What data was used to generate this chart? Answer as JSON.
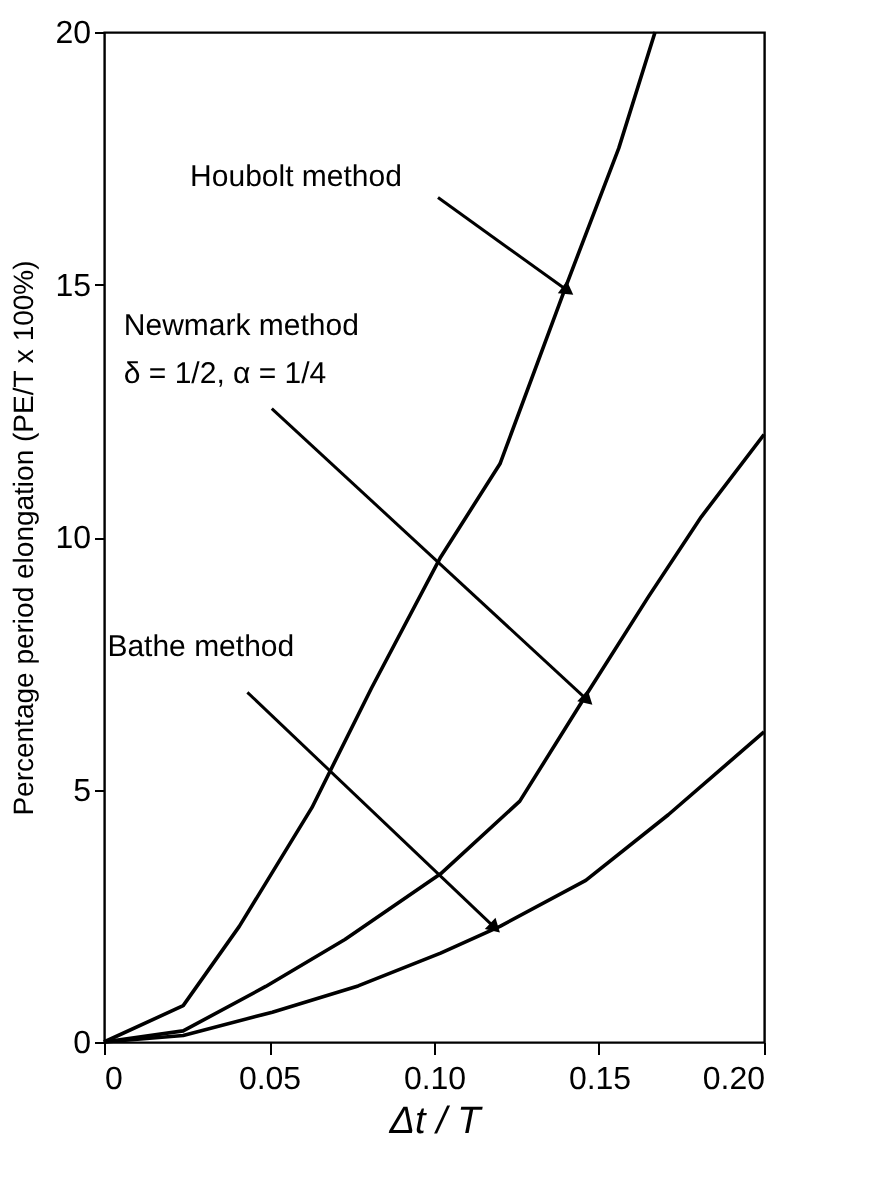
{
  "chart_data": {
    "type": "line",
    "xlabel": "Δt / T",
    "ylabel": "Percentage period elongation (PE/T x 100%)",
    "xlim": [
      0,
      0.2
    ],
    "ylim": [
      0,
      20
    ],
    "xticks": [
      {
        "value": 0,
        "label": "0"
      },
      {
        "value": 0.05,
        "label": "0.05"
      },
      {
        "value": 0.1,
        "label": "0.10"
      },
      {
        "value": 0.15,
        "label": "0.15"
      },
      {
        "value": 0.2,
        "label": "0.20"
      }
    ],
    "yticks": [
      0,
      5,
      10,
      15,
      20
    ],
    "grid": false,
    "marker": "none",
    "line_style": "solid",
    "series": [
      {
        "color": "#000000",
        "x": [
          0,
          0.024,
          0.041,
          0.063,
          0.081,
          0.102,
          0.12,
          0.14,
          0.156,
          0.167
        ],
        "values": [
          0,
          0.72,
          2.29,
          4.64,
          7.0,
          9.6,
          11.45,
          14.97,
          17.7,
          20
        ]
      },
      {
        "color": "#000000",
        "x": [
          0,
          0.024,
          0.049,
          0.073,
          0.102,
          0.126,
          0.146,
          0.165,
          0.181,
          0.2
        ],
        "values": [
          0,
          0.22,
          1.1,
          2.03,
          3.33,
          4.77,
          6.86,
          8.82,
          10.4,
          12.03
        ]
      },
      {
        "color": "#000000",
        "x": [
          0,
          0.024,
          0.051,
          0.077,
          0.102,
          0.12,
          0.146,
          0.171,
          0.2
        ],
        "values": [
          0,
          0.13,
          0.59,
          1.11,
          1.76,
          2.29,
          3.2,
          4.5,
          6.14
        ]
      }
    ],
    "annotations": [
      {
        "text": "Houbolt method",
        "x": 0.14,
        "y": 14.9
      },
      {
        "text": "Newmark method\nδ = 1/2, α = 1/4",
        "x": 0.146,
        "y": 6.8
      },
      {
        "text": "Bathe method",
        "x": 0.118,
        "y": 2.29
      }
    ]
  }
}
